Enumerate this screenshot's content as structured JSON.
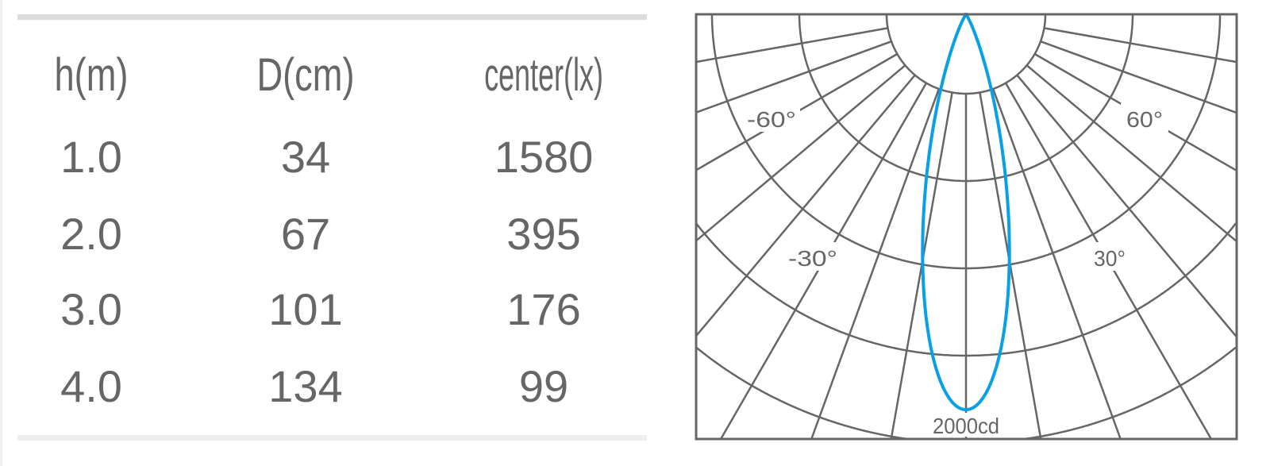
{
  "table": {
    "headers": [
      "h(m)",
      "D(cm)",
      "center(lx)"
    ],
    "rows": [
      [
        "1.0",
        "34",
        "1580"
      ],
      [
        "2.0",
        "67",
        "395"
      ],
      [
        "3.0",
        "101",
        "176"
      ],
      [
        "4.0",
        "134",
        "99"
      ]
    ]
  },
  "chart_data": {
    "type": "polar",
    "angle_labels": [
      "-60°",
      "60°",
      "-30°",
      "30°"
    ],
    "radial_label": "2000cd",
    "radial_max_cd": 2000,
    "rings": 5,
    "angle_step_deg": 10,
    "series": [
      {
        "peak_cd": 1810,
        "half_width_deg": 10,
        "color": "#0aa0e6"
      }
    ],
    "grid_color": "#666666"
  }
}
